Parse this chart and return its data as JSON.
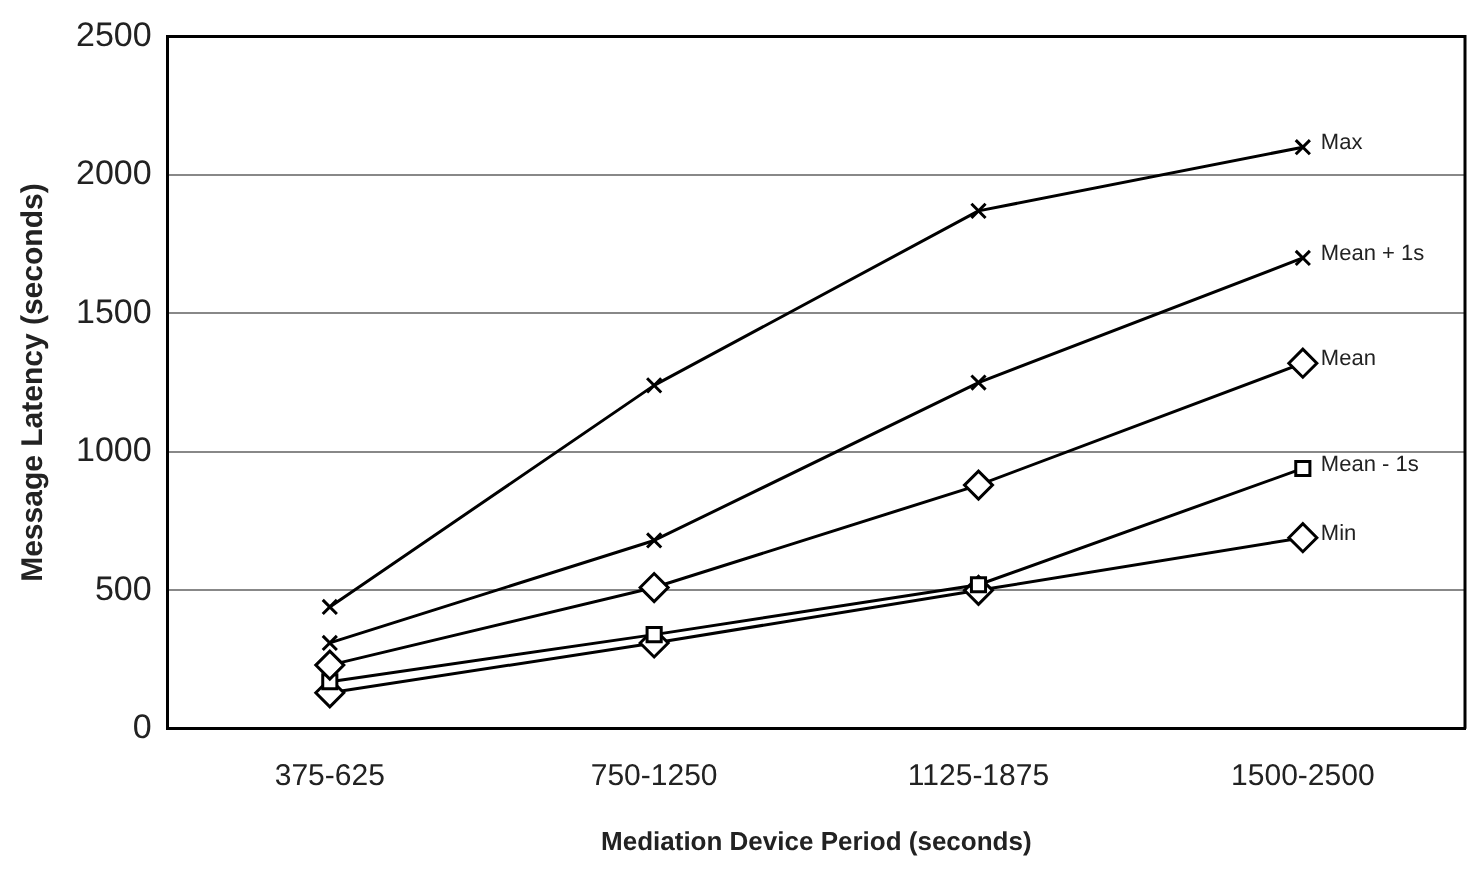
{
  "chart_data": {
    "type": "line",
    "xlabel": "Mediation Device Period (seconds)",
    "ylabel": "Message Latency (seconds)",
    "categories": [
      "375-625",
      "750-1250",
      "1125-1875",
      "1500-2500"
    ],
    "ylim": [
      0,
      2500
    ],
    "yticks": [
      0,
      500,
      1000,
      1500,
      2000,
      2500
    ],
    "grid": "y",
    "legend": false,
    "series": [
      {
        "name": "Max",
        "color": "#000000",
        "marker": "cross",
        "values": [
          440,
          1240,
          1870,
          2100
        ]
      },
      {
        "name": "Mean + 1s",
        "color": "#000000",
        "marker": "cross",
        "values": [
          310,
          680,
          1250,
          1700
        ]
      },
      {
        "name": "Mean",
        "color": "#000000",
        "marker": "diamond",
        "values": [
          230,
          510,
          880,
          1320
        ]
      },
      {
        "name": "Mean - 1s",
        "color": "#000000",
        "marker": "square",
        "values": [
          170,
          340,
          520,
          940
        ]
      },
      {
        "name": "Min",
        "color": "#000000",
        "marker": "diamond",
        "values": [
          130,
          310,
          500,
          690
        ]
      }
    ]
  }
}
